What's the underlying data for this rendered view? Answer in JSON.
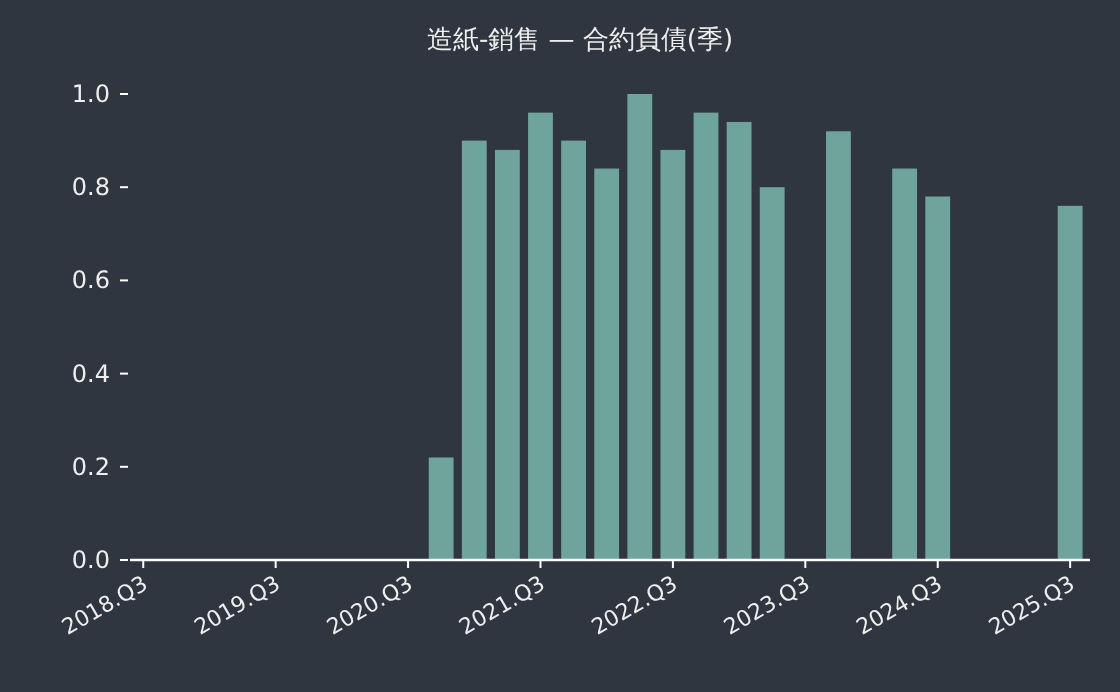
{
  "chart_data": {
    "type": "bar",
    "title": "造紙-銷售 — 合約負債(季)",
    "categories": [
      "2018.Q3",
      null,
      null,
      null,
      "2019.Q3",
      null,
      null,
      null,
      "2020.Q3",
      null,
      null,
      null,
      "2021.Q3",
      null,
      null,
      null,
      "2022.Q3",
      null,
      null,
      null,
      "2023.Q3",
      null,
      null,
      null,
      "2024.Q3",
      null,
      null,
      null,
      "2025.Q3"
    ],
    "values": [
      null,
      null,
      null,
      null,
      null,
      null,
      null,
      null,
      null,
      0.22,
      0.9,
      0.88,
      0.96,
      0.9,
      0.84,
      1.0,
      0.88,
      0.96,
      0.94,
      0.8,
      null,
      0.92,
      null,
      0.84,
      0.78,
      null,
      null,
      null,
      0.76
    ],
    "color": "#6fa49d",
    "ylim": [
      0,
      1
    ],
    "yticks": [
      {
        "value": 0,
        "label": "0.0"
      },
      {
        "value": 0.2,
        "label": "0.2"
      },
      {
        "value": 0.4,
        "label": "0.4"
      },
      {
        "value": 0.6,
        "label": "0.6"
      },
      {
        "value": 0.8,
        "label": "0.8"
      },
      {
        "value": 1,
        "label": "1.0"
      }
    ],
    "grid": false
  }
}
